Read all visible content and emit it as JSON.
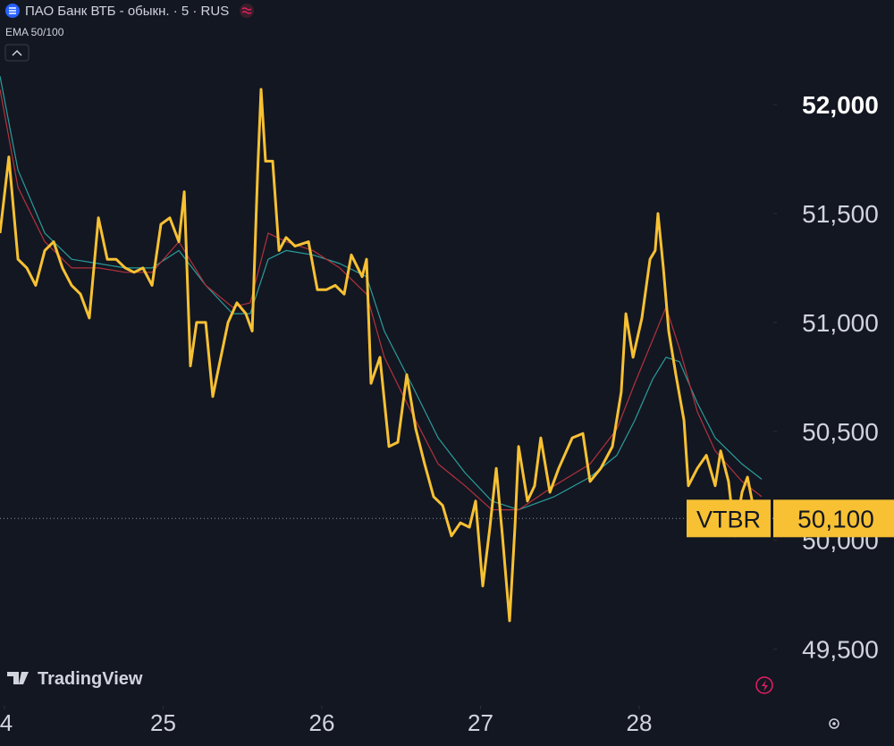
{
  "header": {
    "title": "ПАО Банк ВТБ - обыкн. · 5 · RUS",
    "indicator": "EMA 50/100",
    "watermark": "TradingView"
  },
  "chart_data": {
    "type": "line",
    "xlim": [
      23.972,
      28.845
    ],
    "ylim": [
      49240,
      52480
    ],
    "xticks": [
      {
        "value": 24,
        "label": "4"
      },
      25,
      26,
      27,
      28
    ],
    "yticks": [
      {
        "value": 52000,
        "label": "52,000"
      },
      {
        "value": 51500,
        "label": "51,500"
      },
      {
        "value": 51000,
        "label": "51,000"
      },
      {
        "value": 50500,
        "label": "50,500"
      },
      {
        "value": 50000,
        "label": "50,000"
      },
      {
        "value": 49500,
        "label": "49,500"
      }
    ],
    "last_price": {
      "symbol": "VTBR",
      "value": 50100,
      "label": "50,100",
      "color": "#f7c133"
    },
    "series": [
      {
        "color": "#f7c133",
        "width": 3,
        "x": [
          23.972,
          24.028,
          24.085,
          24.141,
          24.197,
          24.254,
          24.31,
          24.366,
          24.423,
          24.479,
          24.535,
          24.592,
          24.648,
          24.704,
          24.761,
          24.817,
          24.873,
          24.93,
          24.986,
          25.042,
          25.099,
          25.133,
          25.172,
          25.211,
          25.268,
          25.313,
          25.352,
          25.409,
          25.465,
          25.521,
          25.561,
          25.595,
          25.617,
          25.645,
          25.69,
          25.73,
          25.775,
          25.831,
          25.916,
          25.972,
          26.028,
          26.085,
          26.141,
          26.186,
          26.254,
          26.282,
          26.31,
          26.366,
          26.423,
          26.479,
          26.535,
          26.592,
          26.648,
          26.704,
          26.761,
          26.817,
          26.873,
          26.93,
          26.969,
          27.014,
          27.059,
          27.099,
          27.138,
          27.183,
          27.217,
          27.24,
          27.296,
          27.341,
          27.38,
          27.437,
          27.493,
          27.578,
          27.645,
          27.69,
          27.758,
          27.831,
          27.887,
          27.916,
          27.961,
          28.017,
          28.068,
          28.101,
          28.118,
          28.152,
          28.186,
          28.231,
          28.282,
          28.31,
          28.366,
          28.423,
          28.479,
          28.513,
          28.563,
          28.603,
          28.648,
          28.682,
          28.733
        ],
        "values": [
          51410,
          51760,
          51290,
          51250,
          51170,
          51330,
          51370,
          51250,
          51170,
          51130,
          51020,
          51480,
          51290,
          51290,
          51250,
          51230,
          51250,
          51170,
          51450,
          51480,
          51370,
          51600,
          50800,
          51000,
          51000,
          50660,
          50800,
          51000,
          51090,
          51040,
          50960,
          51680,
          52070,
          51740,
          51740,
          51330,
          51390,
          51350,
          51370,
          51150,
          51150,
          51170,
          51130,
          51310,
          51210,
          51290,
          50720,
          50840,
          50430,
          50450,
          50760,
          50510,
          50350,
          50200,
          50160,
          50020,
          50080,
          50060,
          50180,
          49790,
          50060,
          50330,
          50020,
          49630,
          50060,
          50430,
          50180,
          50250,
          50470,
          50220,
          50330,
          50470,
          50490,
          50270,
          50330,
          50430,
          50680,
          51040,
          50840,
          51020,
          51290,
          51330,
          51500,
          51250,
          50960,
          50760,
          50550,
          50250,
          50330,
          50390,
          50250,
          50410,
          50270,
          50020,
          50220,
          50290,
          50100
        ]
      },
      {
        "color": "#b2323c",
        "width": 1.2,
        "x": [
          23.972,
          24.085,
          24.254,
          24.423,
          24.592,
          24.761,
          24.93,
          25.099,
          25.268,
          25.437,
          25.549,
          25.662,
          25.775,
          25.944,
          26.113,
          26.282,
          26.394,
          26.563,
          26.733,
          26.902,
          27.071,
          27.24,
          27.465,
          27.69,
          27.859,
          27.972,
          28.085,
          28.169,
          28.254,
          28.366,
          28.479,
          28.648,
          28.772
        ],
        "values": [
          52070,
          51620,
          51370,
          51250,
          51250,
          51230,
          51230,
          51370,
          51170,
          51070,
          51090,
          51410,
          51370,
          51330,
          51250,
          51130,
          50840,
          50590,
          50350,
          50250,
          50140,
          50140,
          50250,
          50350,
          50510,
          50720,
          50920,
          51070,
          50880,
          50590,
          50410,
          50270,
          50200
        ]
      },
      {
        "color": "#2a9d9a",
        "width": 1.2,
        "x": [
          23.972,
          24.085,
          24.254,
          24.423,
          24.592,
          24.761,
          24.93,
          25.099,
          25.268,
          25.437,
          25.549,
          25.662,
          25.775,
          25.944,
          26.113,
          26.282,
          26.394,
          26.563,
          26.733,
          26.902,
          27.071,
          27.24,
          27.465,
          27.69,
          27.859,
          27.972,
          28.085,
          28.169,
          28.254,
          28.366,
          28.479,
          28.648,
          28.772
        ],
        "values": [
          52130,
          51700,
          51410,
          51290,
          51270,
          51250,
          51250,
          51330,
          51170,
          51040,
          51040,
          51290,
          51330,
          51310,
          51270,
          51210,
          50960,
          50720,
          50470,
          50310,
          50180,
          50140,
          50200,
          50290,
          50390,
          50550,
          50740,
          50840,
          50820,
          50630,
          50470,
          50350,
          50280
        ]
      }
    ]
  }
}
